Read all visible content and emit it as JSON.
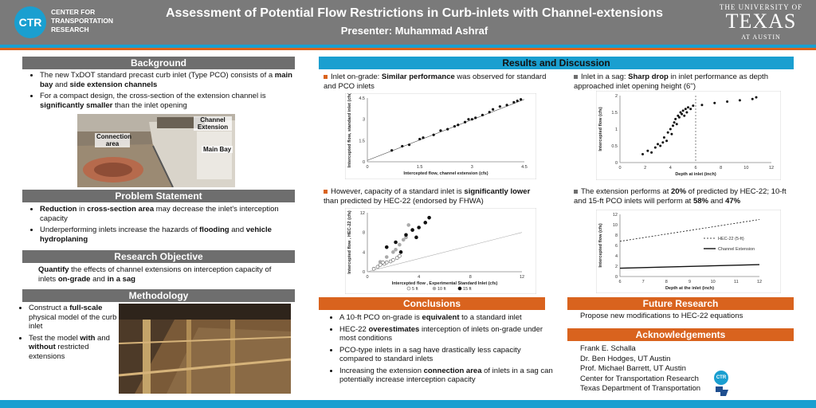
{
  "header": {
    "logo_text": "CTR",
    "center_name": "CENTER FOR TRANSPORTATION RESEARCH",
    "title": "Assessment of Potential Flow Restrictions in Curb-inlets with Channel-extensions",
    "presenter": "Presenter: Muhammad Ashraf",
    "university_line1": "THE UNIVERSITY OF",
    "university_line2": "TEXAS",
    "university_line3": "AT AUSTIN"
  },
  "background": {
    "heading": "Background",
    "b1_pre": "The new TxDOT standard precast curb inlet (Type PCO) consists of a ",
    "b1_bold1": "main bay",
    "b1_mid": " and ",
    "b1_bold2": "side extension channels",
    "b2_pre": "For a compact design, the cross-section of the extension channel is ",
    "b2_bold": "significantly smaller",
    "b2_post": " than the inlet opening",
    "photo_labels": {
      "channel_extension": "Channel Extension",
      "connection_area": "Connection area",
      "main_bay": "Main Bay"
    }
  },
  "problem": {
    "heading": "Problem Statement",
    "b1_bold1": "Reduction",
    "b1_mid": " in ",
    "b1_bold2": "cross-section area",
    "b1_post": " may decrease the inlet's interception capacity",
    "b2_pre": "Underperforming inlets increase the hazards of ",
    "b2_bold1": "flooding",
    "b2_mid": " and ",
    "b2_bold2": "vehicle hydroplaning"
  },
  "objective": {
    "heading": "Research Objective",
    "bold1": "Quantify",
    "t1": " the effects of channel extensions on interception capacity of inlets ",
    "bold2": "on-grade",
    "t2": " and ",
    "bold3": "in a sag"
  },
  "methodology": {
    "heading": "Methodology",
    "b1_pre": "Construct a ",
    "b1_bold": "full-scale",
    "b1_post": " physical model of the curb inlet",
    "b2_pre": "Test the model ",
    "b2_bold1": "with",
    "b2_mid": " and ",
    "b2_bold2": "without",
    "b2_post": " restricted extensions"
  },
  "results": {
    "heading": "Results and Discussion",
    "p1_pre": "Inlet on-grade: ",
    "p1_bold": "Similar performance",
    "p1_post": " was observed for standard and PCO inlets",
    "p2_pre": "Inlet in a sag: ",
    "p2_bold": "Sharp drop",
    "p2_post": " in inlet performance as depth approached inlet opening height (6'')",
    "p3_pre": "However, capacity of a standard inlet is ",
    "p3_bold": "significantly lower",
    "p3_post": " than predicted by HEC-22 (endorsed by FHWA)",
    "p4_pre": "The extension performs at ",
    "p4_bold1": "20%",
    "p4_mid": " of predicted by HEC-22; 10-ft and 15-ft PCO inlets will perform at ",
    "p4_bold2": "58%",
    "p4_and": " and ",
    "p4_bold3": "47%",
    "bullet_color": "#d9631e"
  },
  "chart_data": [
    {
      "type": "scatter",
      "xlabel": "Intercepted flow, channel extension (cfs)",
      "ylabel": "Intercepted flow, standard inlet (cfs)",
      "xlim": [
        0,
        4.5
      ],
      "ylim": [
        0,
        4.5
      ],
      "xticks": [
        "0",
        "1.5",
        "3",
        "4.5"
      ],
      "yticks": [
        "0",
        "1.5",
        "3",
        "4.5"
      ],
      "x": [
        0.7,
        1.0,
        1.2,
        1.5,
        1.6,
        1.9,
        2.1,
        2.3,
        2.5,
        2.6,
        2.8,
        2.9,
        3.0,
        3.1,
        3.3,
        3.5,
        3.6,
        3.8,
        4.0,
        4.2,
        4.3,
        4.4
      ],
      "y": [
        0.8,
        1.1,
        1.2,
        1.6,
        1.7,
        1.9,
        2.2,
        2.3,
        2.5,
        2.6,
        2.8,
        3.0,
        3.0,
        3.1,
        3.3,
        3.5,
        3.7,
        3.9,
        4.0,
        4.2,
        4.3,
        4.4
      ],
      "line": [
        [
          0,
          0.1
        ],
        [
          4.5,
          4.4
        ]
      ]
    },
    {
      "type": "scatter",
      "xlabel": "Depth at inlet (inch)",
      "ylabel": "Intercepted flow (cfs)",
      "xlim": [
        0,
        12
      ],
      "ylim": [
        0,
        2
      ],
      "xticks": [
        "0",
        "2",
        "4",
        "6",
        "8",
        "10",
        "12"
      ],
      "yticks": [
        "0",
        "0.5",
        "1",
        "1.5",
        "2"
      ],
      "x": [
        1.8,
        2.2,
        2.5,
        2.8,
        3.0,
        3.2,
        3.4,
        3.5,
        3.7,
        3.8,
        4.0,
        4.1,
        4.2,
        4.3,
        4.4,
        4.5,
        4.6,
        4.7,
        4.8,
        4.9,
        5.0,
        5.1,
        5.2,
        5.3,
        5.4,
        5.6,
        5.8,
        6.5,
        7.5,
        8.5,
        9.5,
        10.5,
        10.8
      ],
      "y": [
        0.25,
        0.35,
        0.3,
        0.45,
        0.55,
        0.5,
        0.6,
        0.75,
        0.65,
        0.9,
        1.0,
        0.85,
        1.1,
        1.2,
        1.3,
        1.15,
        1.4,
        1.35,
        1.5,
        1.45,
        1.55,
        1.4,
        1.6,
        1.5,
        1.65,
        1.6,
        1.7,
        1.72,
        1.78,
        1.82,
        1.86,
        1.9,
        1.95
      ],
      "vline": 6
    },
    {
      "type": "scatter",
      "xlabel": "Intercepted flow , Experimental Standard Inlet (cfs)",
      "ylabel": "Intercepted flow , HEC-22 (cfs)",
      "xlim": [
        0,
        12
      ],
      "ylim": [
        0,
        12
      ],
      "xticks": [
        "0",
        "4",
        "8",
        "12"
      ],
      "yticks": [
        "0",
        "4",
        "8",
        "12"
      ],
      "series": [
        {
          "name": "5 ft",
          "x": [
            0.5,
            0.8,
            1.0,
            1.3,
            1.5,
            1.8,
            2.0,
            2.3,
            2.5,
            1.2
          ],
          "y": [
            0.6,
            1.0,
            1.4,
            1.6,
            1.9,
            2.1,
            2.4,
            2.8,
            3.2,
            1.9
          ]
        },
        {
          "name": "10 ft",
          "x": [
            1.0,
            1.5,
            2.0,
            2.5,
            3.0,
            3.5,
            2.2,
            2.8,
            3.2
          ],
          "y": [
            2.0,
            3.0,
            4.0,
            5.5,
            7.0,
            8.5,
            4.5,
            6.5,
            9.5
          ]
        },
        {
          "name": "15 ft",
          "x": [
            1.5,
            2.2,
            3.0,
            3.5,
            4.0,
            4.5,
            4.8,
            3.8,
            2.6
          ],
          "y": [
            5.0,
            6.0,
            7.5,
            8.5,
            9.0,
            10.0,
            11.0,
            7.0,
            4.0
          ]
        }
      ],
      "line": [
        [
          0,
          0
        ],
        [
          12,
          8
        ]
      ]
    },
    {
      "type": "line",
      "xlabel": "Depth at the inlet (inch)",
      "ylabel": "Intercepted flow (cfs)",
      "xlim": [
        6,
        12
      ],
      "ylim": [
        0,
        12
      ],
      "xticks": [
        "6",
        "7",
        "8",
        "9",
        "10",
        "11",
        "12"
      ],
      "yticks": [
        "0",
        "2",
        "4",
        "6",
        "8",
        "10",
        "12"
      ],
      "series": [
        {
          "name": "HEC-22 (5-ft)",
          "x": [
            6,
            12
          ],
          "y": [
            6.8,
            11.0
          ]
        },
        {
          "name": "Channel Extension",
          "x": [
            6,
            12
          ],
          "y": [
            1.6,
            2.3
          ]
        }
      ]
    }
  ],
  "conclusions": {
    "heading": "Conclusions",
    "c1_pre": "A 10-ft PCO on-grade is ",
    "c1_bold": "equivalent",
    "c1_post": " to a standard inlet",
    "c2_pre": "HEC-22 ",
    "c2_bold": "overestimates",
    "c2_post": " interception of inlets on-grade under most conditions",
    "c3": "PCO-type inlets in a sag have drastically less capacity compared to standard inlets",
    "c4_pre": "Increasing the extension ",
    "c4_bold": "connection area",
    "c4_post": " of inlets in a sag can potentially increase interception capacity"
  },
  "future": {
    "heading": "Future Research",
    "text": "Propose new modifications to HEC-22 equations"
  },
  "acknowledgements": {
    "heading": "Acknowledgements",
    "names": [
      "Frank E. Schalla",
      "Dr. Ben Hodges, UT Austin",
      "Prof. Michael Barrett, UT Austin",
      "Center for Transportation Research",
      "Texas Department of Transportation"
    ],
    "logo_text": "CTR"
  }
}
